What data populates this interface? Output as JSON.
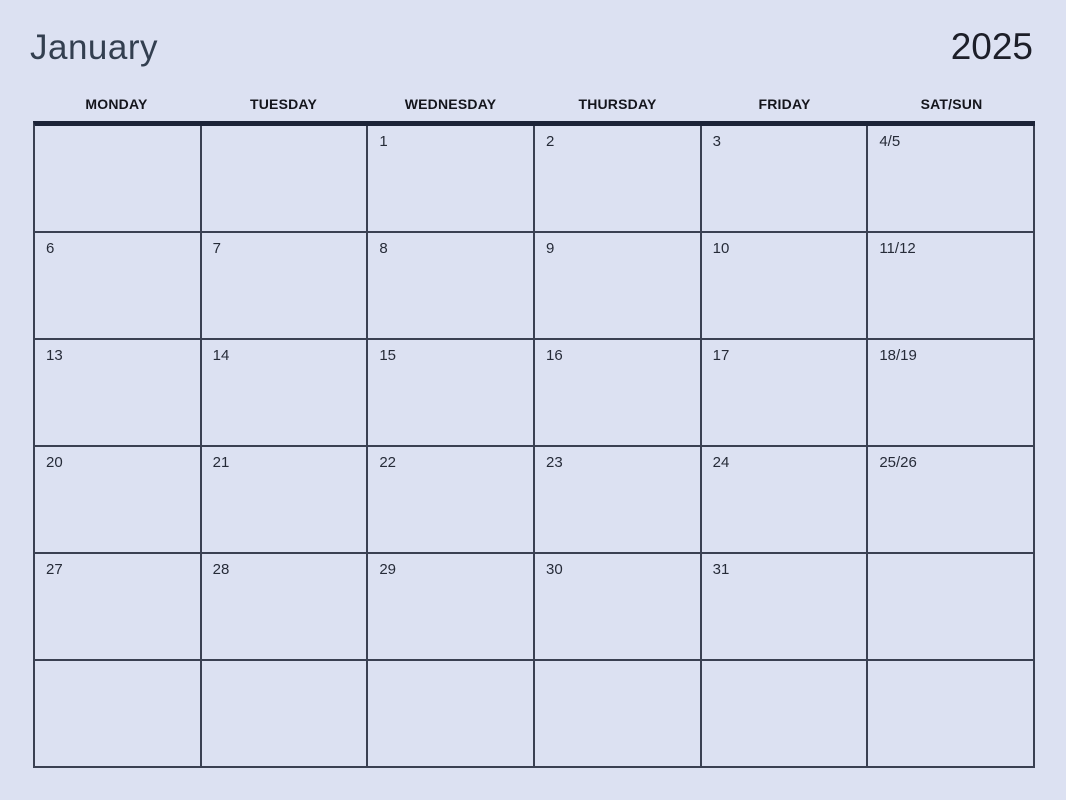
{
  "header": {
    "month": "January",
    "year": "2025"
  },
  "weekdays": [
    "MONDAY",
    "TUESDAY",
    "WEDNESDAY",
    "THURSDAY",
    "FRIDAY",
    "SAT/SUN"
  ],
  "grid": {
    "rows": [
      [
        "",
        "",
        "1",
        "2",
        "3",
        "4/5"
      ],
      [
        "6",
        "7",
        "8",
        "9",
        "10",
        "11/12"
      ],
      [
        "13",
        "14",
        "15",
        "16",
        "17",
        "18/19"
      ],
      [
        "20",
        "21",
        "22",
        "23",
        "24",
        "25/26"
      ],
      [
        "27",
        "28",
        "29",
        "30",
        "31",
        ""
      ],
      [
        "",
        "",
        "",
        "",
        "",
        ""
      ]
    ]
  },
  "colors": {
    "page_background": "#dce1f2",
    "cell_background": "#dce1f2",
    "table_top_border": "#1c2338",
    "table_grid_border": "#3a4052",
    "month_title": "#333f50",
    "year_title": "#1d1f29",
    "weekday_text": "#14151c",
    "day_number_text": "#262b38"
  }
}
